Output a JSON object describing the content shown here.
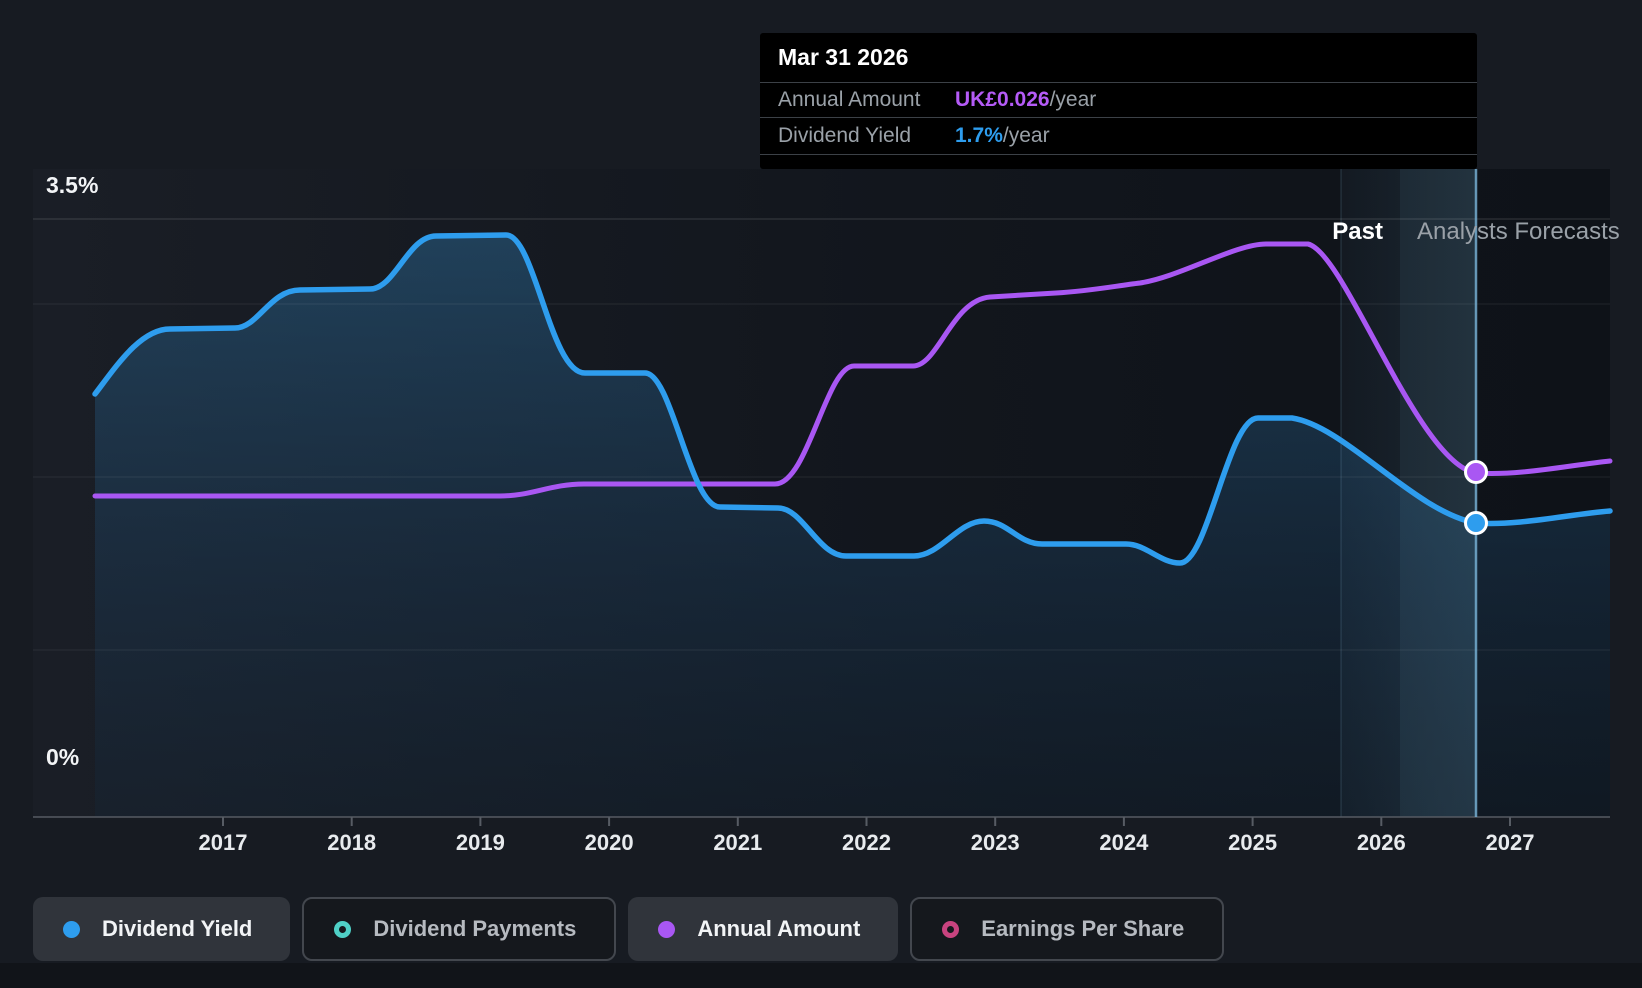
{
  "axis": {
    "y_top_label": "3.5%",
    "y_bottom_label": "0%"
  },
  "annotations": {
    "past": "Past",
    "forecast": "Analysts Forecasts"
  },
  "tooltip": {
    "date": "Mar 31 2026",
    "rows": [
      {
        "label": "Annual Amount",
        "value": "UK£0.026",
        "suffix": "/year",
        "color": "#b55bf7"
      },
      {
        "label": "Dividend Yield",
        "value": "1.7%",
        "suffix": "/year",
        "color": "#2e9dee"
      }
    ]
  },
  "legend": {
    "items": [
      {
        "label": "Dividend Yield",
        "color": "#2e9dee",
        "variant": "dot",
        "active": true
      },
      {
        "label": "Dividend Payments",
        "color": "#4fd0c7",
        "variant": "ring",
        "active": false
      },
      {
        "label": "Annual Amount",
        "color": "#a957f3",
        "variant": "dot",
        "active": true
      },
      {
        "label": "Earnings Per Share",
        "color": "#c8437f",
        "variant": "ring",
        "active": false
      }
    ]
  },
  "chart_data": {
    "type": "line",
    "title": "Dividend history and forecast",
    "x_axis": {
      "tick_labels": [
        "2017",
        "2018",
        "2019",
        "2020",
        "2021",
        "2022",
        "2023",
        "2024",
        "2025",
        "2026",
        "2027"
      ]
    },
    "y_axis": {
      "unit": "%",
      "range": [
        0,
        3.5
      ],
      "gridline_values": [
        3.5,
        3.0,
        2.0,
        1.0,
        0.0
      ],
      "top_label": "3.5%",
      "bottom_label": "0%"
    },
    "legend_position": "bottom",
    "grid": true,
    "regions": [
      {
        "label": "Past",
        "end_x": 2025.9
      },
      {
        "label": "Analysts Forecasts",
        "start_x": 2025.9
      }
    ],
    "series": [
      {
        "name": "Dividend Yield",
        "color": "#2e9dee",
        "unit": "%",
        "style": "line+area",
        "points": [
          [
            2016.0,
            2.5
          ],
          [
            2016.5,
            2.8
          ],
          [
            2017.0,
            2.9
          ],
          [
            2017.6,
            3.1
          ],
          [
            2018.0,
            3.1
          ],
          [
            2018.6,
            3.4
          ],
          [
            2019.0,
            3.4
          ],
          [
            2019.3,
            3.2
          ],
          [
            2019.6,
            2.6
          ],
          [
            2020.0,
            2.6
          ],
          [
            2020.5,
            2.2
          ],
          [
            2020.9,
            1.8
          ],
          [
            2021.3,
            1.8
          ],
          [
            2021.8,
            1.5
          ],
          [
            2022.0,
            1.5
          ],
          [
            2022.9,
            1.7
          ],
          [
            2023.4,
            1.6
          ],
          [
            2024.0,
            1.6
          ],
          [
            2024.4,
            1.5
          ],
          [
            2025.0,
            2.3
          ],
          [
            2025.3,
            2.3
          ],
          [
            2026.2,
            1.7
          ],
          [
            2027.0,
            1.8
          ]
        ]
      },
      {
        "name": "Annual Amount",
        "color": "#a957f3",
        "unit": "UK£/year",
        "style": "line",
        "points": [
          [
            2016.0,
            0.024
          ],
          [
            2019.0,
            0.024
          ],
          [
            2019.6,
            0.025
          ],
          [
            2021.3,
            0.025
          ],
          [
            2021.9,
            0.034
          ],
          [
            2022.4,
            0.034
          ],
          [
            2022.9,
            0.039
          ],
          [
            2023.4,
            0.039
          ],
          [
            2024.0,
            0.0405
          ],
          [
            2024.8,
            0.042
          ],
          [
            2025.0,
            0.043
          ],
          [
            2025.4,
            0.043
          ],
          [
            2026.2,
            0.026
          ],
          [
            2027.0,
            0.027
          ]
        ]
      }
    ],
    "markers": [
      {
        "series": "Annual Amount",
        "x": 2026.2,
        "value": "UK£0.026/year"
      },
      {
        "series": "Dividend Yield",
        "x": 2026.2,
        "value": "1.7%/year"
      }
    ]
  }
}
